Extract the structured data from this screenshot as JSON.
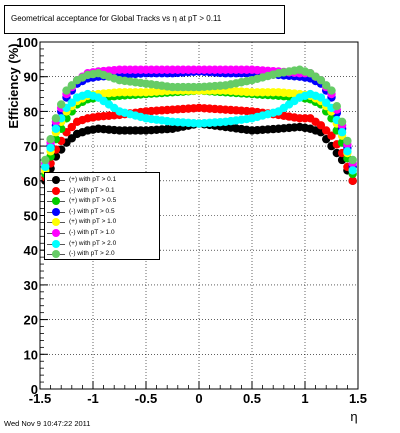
{
  "chart_data": {
    "type": "scatter",
    "title": "Geometrical acceptance for Global Tracks vs    η at pT > 0.11",
    "xlabel": "η",
    "ylabel": "Efficiency (%)",
    "xlim": [
      -1.5,
      1.5
    ],
    "ylim": [
      0,
      100
    ],
    "xticks": [
      "-1.5",
      "-1",
      "-0.5",
      "0",
      "0.5",
      "1",
      "1.5"
    ],
    "yticks": [
      "0",
      "10",
      "20",
      "30",
      "40",
      "50",
      "60",
      "70",
      "80",
      "90",
      "100"
    ],
    "grid": true,
    "legend_position": "middle-left",
    "timestamp": "Wed Nov  9 10:47:22 2011",
    "series": [
      {
        "name": "(+) with pT > 0.1",
        "color": "#000000",
        "x": [
          -1.45,
          -1.35,
          -1.25,
          -1.15,
          -1.05,
          -0.95,
          -0.75,
          -0.5,
          -0.25,
          0,
          0.25,
          0.5,
          0.75,
          0.95,
          1.05,
          1.15,
          1.25,
          1.35,
          1.45
        ],
        "y": [
          60,
          67,
          71,
          73.5,
          74.5,
          75,
          74.5,
          74.5,
          75,
          76.5,
          75.5,
          74.5,
          75,
          75.5,
          75,
          74,
          70,
          66,
          60
        ]
      },
      {
        "name": "(-) with pT > 0.1",
        "color": "#ff0000",
        "x": [
          -1.45,
          -1.35,
          -1.25,
          -1.15,
          -1.05,
          -0.95,
          -0.75,
          -0.5,
          -0.25,
          0,
          0.25,
          0.5,
          0.75,
          0.95,
          1.05,
          1.15,
          1.25,
          1.35,
          1.45
        ],
        "y": [
          61,
          69,
          74,
          77,
          78,
          78.5,
          79,
          80,
          80.5,
          81,
          80.5,
          80,
          79,
          78,
          78,
          76,
          73,
          68,
          60
        ]
      },
      {
        "name": "(+) with pT > 0.5",
        "color": "#00cc00",
        "x": [
          -1.45,
          -1.35,
          -1.25,
          -1.15,
          -1.05,
          -0.95,
          -0.75,
          -0.5,
          -0.25,
          0,
          0.25,
          0.5,
          0.75,
          0.95,
          1.05,
          1.15,
          1.25,
          1.35,
          1.45
        ],
        "y": [
          62,
          72,
          78,
          82,
          83.5,
          84,
          84.5,
          85,
          85.5,
          86,
          85.5,
          85,
          84.5,
          84,
          83.5,
          82,
          78,
          71,
          62
        ]
      },
      {
        "name": "(-) with pT > 0.5",
        "color": "#0000ff",
        "x": [
          -1.45,
          -1.35,
          -1.25,
          -1.15,
          -1.05,
          -0.95,
          -0.75,
          -0.5,
          -0.25,
          0,
          0.25,
          0.5,
          0.75,
          0.95,
          1.05,
          1.15,
          1.25,
          1.35,
          1.45
        ],
        "y": [
          64,
          76,
          84,
          88,
          89.5,
          90,
          90.5,
          91,
          91,
          91.5,
          91,
          91,
          90.5,
          90,
          89.5,
          88,
          84,
          75,
          64
        ]
      },
      {
        "name": "(+) with pT > 1.0",
        "color": "#ffff00",
        "x": [
          -1.45,
          -1.35,
          -1.25,
          -1.15,
          -1.05,
          -0.95,
          -0.75,
          -0.5,
          -0.25,
          0,
          0.25,
          0.5,
          0.75,
          0.95,
          1.05,
          1.15,
          1.25,
          1.35,
          1.45
        ],
        "y": [
          63,
          74,
          80,
          83,
          84.5,
          85,
          85.5,
          85.5,
          86,
          86,
          86,
          85.5,
          85.5,
          85,
          84.5,
          83,
          80,
          73,
          63
        ]
      },
      {
        "name": "(-) with pT > 1.0",
        "color": "#ff00ff",
        "x": [
          -1.45,
          -1.35,
          -1.25,
          -1.15,
          -1.05,
          -0.95,
          -0.75,
          -0.5,
          -0.25,
          0,
          0.25,
          0.5,
          0.75,
          0.95,
          1.05,
          1.15,
          1.25,
          1.35,
          1.45
        ],
        "y": [
          65,
          77,
          85,
          89,
          91,
          91.5,
          92,
          92,
          92,
          92,
          92,
          92,
          91.5,
          91,
          91,
          89,
          85,
          76,
          65
        ]
      },
      {
        "name": "(+) with pT > 2.0",
        "color": "#00ffff",
        "x": [
          -1.45,
          -1.35,
          -1.25,
          -1.15,
          -1.05,
          -0.95,
          -0.75,
          -0.5,
          -0.25,
          0,
          0.25,
          0.5,
          0.75,
          0.95,
          1.05,
          1.15,
          1.25,
          1.35,
          1.45
        ],
        "y": [
          64,
          75,
          81,
          84,
          85,
          84,
          80,
          78,
          77,
          76.5,
          77,
          78,
          80,
          84,
          85,
          84,
          81,
          74,
          63
        ]
      },
      {
        "name": "(-) with pT > 2.0",
        "color": "#66cc66",
        "x": [
          -1.45,
          -1.35,
          -1.25,
          -1.15,
          -1.05,
          -0.95,
          -0.75,
          -0.5,
          -0.25,
          0,
          0.25,
          0.5,
          0.75,
          0.95,
          1.05,
          1.15,
          1.25,
          1.35,
          1.45
        ],
        "y": [
          66,
          78,
          86,
          89,
          90.5,
          91,
          89,
          88,
          87,
          87,
          87.5,
          89,
          91,
          92,
          91,
          89,
          86,
          77,
          66
        ]
      }
    ]
  }
}
